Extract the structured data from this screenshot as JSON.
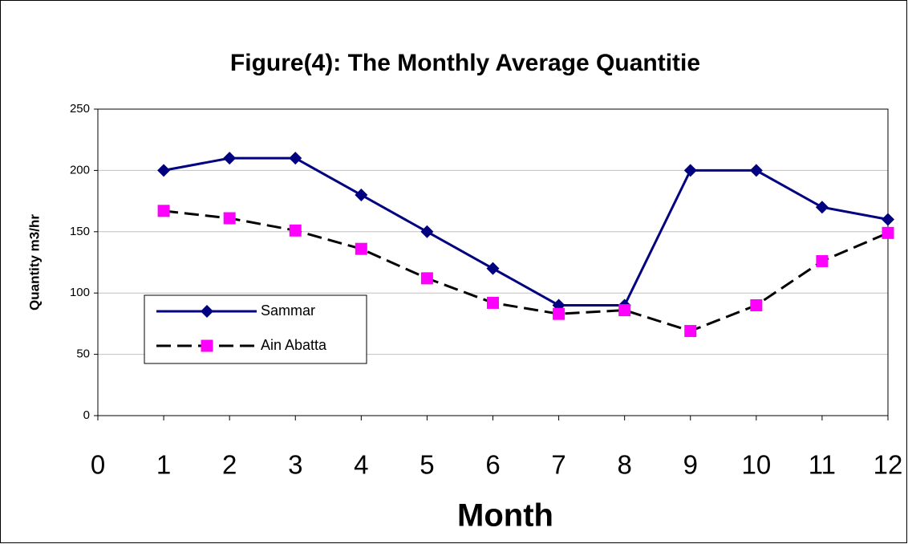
{
  "chart_data": {
    "type": "line",
    "title": "Figure(4): The Monthly Average Quantitie",
    "x_label": "Month",
    "y_label": "Quantity m3/hr",
    "x": [
      1,
      2,
      3,
      4,
      5,
      6,
      7,
      8,
      9,
      10,
      11,
      12
    ],
    "series": [
      {
        "name": "Sammar",
        "color": "#000080",
        "marker": "diamond",
        "line_style": "solid",
        "values": [
          200,
          210,
          210,
          180,
          150,
          120,
          90,
          90,
          200,
          200,
          170,
          160
        ]
      },
      {
        "name": "Ain Abatta",
        "color": "#000000",
        "marker_color": "#ff00ff",
        "marker": "square",
        "line_style": "dashed",
        "values": [
          167,
          161,
          151,
          136,
          112,
          92,
          83,
          86,
          69,
          90,
          126,
          149
        ]
      }
    ],
    "xlim": [
      0,
      12
    ],
    "xticks": [
      0,
      1,
      2,
      3,
      4,
      5,
      6,
      7,
      8,
      9,
      10,
      11,
      12
    ],
    "ylim": [
      0,
      250
    ],
    "yticks": [
      0,
      50,
      100,
      150,
      200,
      250
    ],
    "grid": true,
    "legend": "lower-left"
  }
}
